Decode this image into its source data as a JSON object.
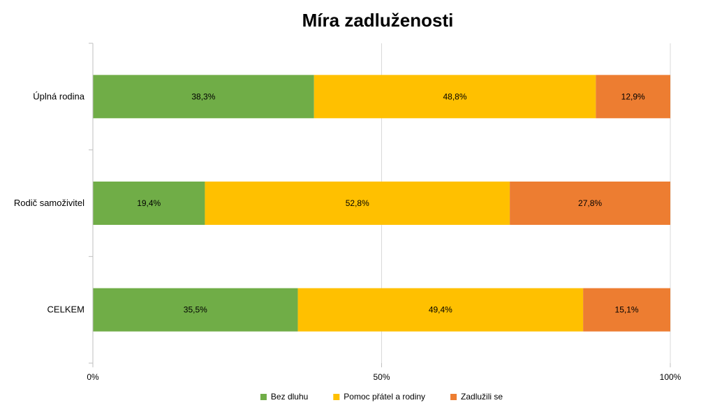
{
  "chart_data": {
    "type": "bar",
    "orientation": "horizontal",
    "stacked": true,
    "percent_stacked": true,
    "title": "Míra zadluženosti",
    "xlabel": "",
    "ylabel": "",
    "xlim": [
      0,
      100
    ],
    "x_ticks": [
      0,
      50,
      100
    ],
    "x_tick_labels": [
      "0%",
      "50%",
      "100%"
    ],
    "grid": "vertical",
    "legend_position": "bottom",
    "categories": [
      "Úplná rodina",
      "Rodič samoživitel",
      "CELKEM"
    ],
    "series": [
      {
        "name": "Bez dluhu",
        "color": "#70AD47",
        "values": [
          38.3,
          19.4,
          35.5
        ],
        "labels": [
          "38,3%",
          "19,4%",
          "35,5%"
        ]
      },
      {
        "name": "Pomoc přátel a rodiny",
        "color": "#FFC000",
        "values": [
          48.8,
          52.8,
          49.4
        ],
        "labels": [
          "48,8%",
          "52,8%",
          "49,4%"
        ]
      },
      {
        "name": "Zadlužili se",
        "color": "#ED7D31",
        "values": [
          12.9,
          27.8,
          15.1
        ],
        "labels": [
          "12,9%",
          "27,8%",
          "15,1%"
        ]
      }
    ]
  }
}
